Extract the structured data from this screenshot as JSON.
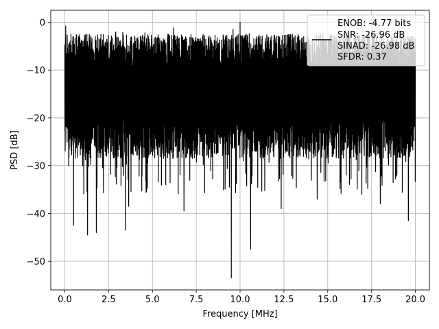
{
  "chart_data": {
    "type": "line",
    "title": "",
    "xlabel": "Frequency [MHz]",
    "ylabel": "PSD [dB]",
    "xlim": [
      -0.8,
      20.8
    ],
    "ylim": [
      -56,
      2.5
    ],
    "xticks": [
      0.0,
      2.5,
      5.0,
      7.5,
      10.0,
      12.5,
      15.0,
      17.5,
      20.0
    ],
    "xtick_labels": [
      "0.0",
      "2.5",
      "5.0",
      "7.5",
      "10.0",
      "12.5",
      "15.0",
      "17.5",
      "20.0"
    ],
    "yticks": [
      0,
      -10,
      -20,
      -30,
      -40,
      -50
    ],
    "ytick_labels": [
      "0",
      "−10",
      "−20",
      "−30",
      "−40",
      "−50"
    ],
    "grid": true,
    "legend_placement": "top-right",
    "legend_lines": [
      "ENOB: -4.77 bits",
      "SNR: -26.96 dB",
      "SINAD: -26.98 dB",
      "SFDR: 0.37"
    ],
    "series": [
      {
        "color": "#000000",
        "x_range": [
          0.0,
          20.0
        ],
        "typical_upper": -6,
        "typical_lower": -24,
        "peaks": [
          {
            "x": 0.05,
            "y": -0.8
          },
          {
            "x": 10.0,
            "y": 0.0
          },
          {
            "x": 9.6,
            "y": -1.5
          },
          {
            "x": 6.2,
            "y": -1.2
          }
        ],
        "dips": [
          {
            "x": 0.5,
            "y": -42.5
          },
          {
            "x": 1.3,
            "y": -44.5
          },
          {
            "x": 1.8,
            "y": -44.0
          },
          {
            "x": 3.45,
            "y": -43.5
          },
          {
            "x": 3.65,
            "y": -38.5
          },
          {
            "x": 6.8,
            "y": -39.5
          },
          {
            "x": 9.5,
            "y": -53.5
          },
          {
            "x": 10.6,
            "y": -47.5
          },
          {
            "x": 12.35,
            "y": -39.0
          },
          {
            "x": 14.4,
            "y": -37.0
          },
          {
            "x": 19.6,
            "y": -41.5
          },
          {
            "x": 18.0,
            "y": -38.0
          }
        ]
      }
    ]
  }
}
